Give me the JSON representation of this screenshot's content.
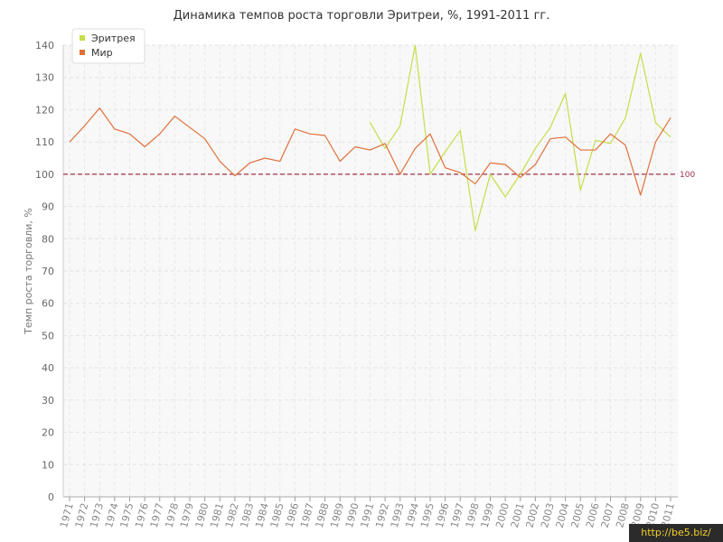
{
  "chart_data": {
    "type": "line",
    "title": "Динамика темпов роста торговли Эритреи, %, 1991-2011 гг.",
    "ylabel": "Темп роста торговли, %",
    "xlabel": "",
    "ylim": [
      0,
      140
    ],
    "yticks": [
      "0",
      "10",
      "20",
      "30",
      "40",
      "50",
      "60",
      "70",
      "80",
      "90",
      "100",
      "110",
      "120",
      "130",
      "140"
    ],
    "grid": true,
    "legend_position": "top-left",
    "reference_line": {
      "value": 100,
      "label": "100",
      "color": "#a0324a"
    },
    "categories": [
      "1971",
      "1972",
      "1973",
      "1974",
      "1975",
      "1976",
      "1977",
      "1978",
      "1979",
      "1980",
      "1981",
      "1982",
      "1983",
      "1984",
      "1985",
      "1986",
      "1987",
      "1988",
      "1989",
      "1990",
      "1991",
      "1992",
      "1993",
      "1994",
      "1995",
      "1996",
      "1997",
      "1998",
      "1999",
      "2000",
      "2001",
      "2002",
      "2003",
      "2004",
      "2005",
      "2006",
      "2007",
      "2008",
      "2009",
      "2010",
      "2011"
    ],
    "series": [
      {
        "name": "Эритрея",
        "color": "#c6dd4a",
        "values": [
          null,
          null,
          null,
          null,
          null,
          null,
          null,
          null,
          null,
          null,
          null,
          null,
          null,
          null,
          null,
          null,
          null,
          null,
          null,
          null,
          116,
          108,
          115,
          140,
          100,
          107,
          113.5,
          82.5,
          100,
          93,
          100,
          108,
          114.5,
          125,
          95,
          110.5,
          109.5,
          117.5,
          137.5,
          116,
          111.5
        ]
      },
      {
        "name": "Мир",
        "color": "#e0703a",
        "values": [
          110,
          115,
          120.5,
          114,
          112.5,
          108.5,
          112.5,
          118,
          114.5,
          111,
          104,
          99.5,
          103.5,
          105,
          104,
          114,
          112.5,
          112,
          104,
          108.5,
          107.5,
          109.5,
          100,
          108,
          112.5,
          102,
          100.5,
          97,
          103.5,
          103,
          99,
          103,
          111,
          111.5,
          107.5,
          107.5,
          112.5,
          109,
          93.5,
          110,
          117.5
        ]
      }
    ]
  },
  "watermark": {
    "text": "http://be5.biz/"
  }
}
